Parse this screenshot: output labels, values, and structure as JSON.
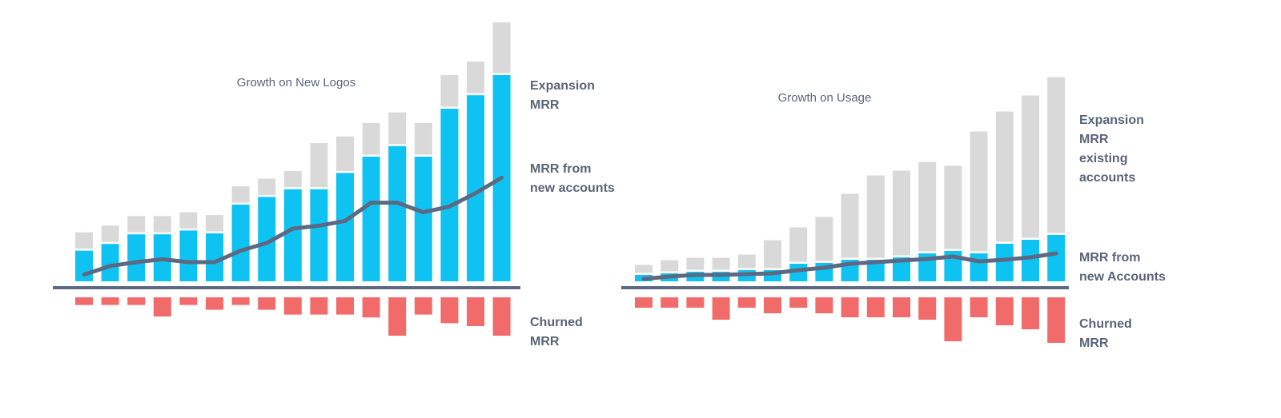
{
  "chart_data": [
    {
      "type": "bar",
      "title": "Growth on New Logos",
      "xlabel": "",
      "ylabel": "",
      "grid": false,
      "categories": [
        "1",
        "2",
        "3",
        "4",
        "5",
        "6",
        "7",
        "8",
        "9",
        "10",
        "11",
        "12",
        "13",
        "14",
        "15",
        "16",
        "17"
      ],
      "series": [
        {
          "key": "new",
          "color": "#0ec3f2",
          "values": [
            32,
            39,
            49,
            49,
            53,
            50,
            80,
            88,
            96,
            96,
            113,
            130,
            141,
            130,
            180,
            194,
            215
          ]
        },
        {
          "key": "expansion",
          "color": "#d9d9d9",
          "values": [
            17,
            17,
            17,
            17,
            17,
            17,
            17,
            17,
            17,
            46,
            36,
            33,
            33,
            33,
            33,
            33,
            53
          ]
        },
        {
          "key": "churn",
          "color": "#f26b6b",
          "values": [
            -8,
            -8,
            -8,
            -20,
            -8,
            -13,
            -8,
            -13,
            -18,
            -18,
            -18,
            -21,
            -40,
            -18,
            -27,
            -30,
            -40
          ]
        }
      ],
      "line": {
        "color": "#5d6882",
        "values": [
          7,
          16,
          20,
          23,
          20,
          20,
          32,
          40,
          55,
          58,
          63,
          82,
          82,
          72,
          78,
          92,
          108
        ]
      },
      "ylim": [
        -60,
        275
      ],
      "labels": [
        {
          "text": "Expansion\nMRR",
          "ref": "expansion"
        },
        {
          "text": "MRR from\nnew accounts",
          "ref": "new"
        },
        {
          "text": "Churned\nMRR",
          "ref": "churn"
        }
      ]
    },
    {
      "type": "bar",
      "title": "Growth on Usage",
      "xlabel": "",
      "ylabel": "",
      "grid": false,
      "categories": [
        "1",
        "2",
        "3",
        "4",
        "5",
        "6",
        "7",
        "8",
        "9",
        "10",
        "11",
        "12",
        "13",
        "14",
        "15",
        "16",
        "17"
      ],
      "series": [
        {
          "key": "new",
          "color": "#0ec3f2",
          "values": [
            8,
            10,
            12,
            12,
            14,
            14,
            22,
            23,
            27,
            27,
            30,
            35,
            38,
            35,
            47,
            52,
            58
          ]
        },
        {
          "key": "expansion",
          "color": "#d9d9d9",
          "values": [
            10,
            14,
            15,
            15,
            17,
            35,
            43,
            55,
            80,
            103,
            106,
            112,
            104,
            150,
            163,
            178,
            195
          ]
        },
        {
          "key": "churn",
          "color": "#f26b6b",
          "values": [
            -13,
            -13,
            -13,
            -28,
            -13,
            -20,
            -13,
            -20,
            -25,
            -25,
            -25,
            -28,
            -55,
            -25,
            -35,
            -40,
            -57
          ]
        }
      ],
      "line": {
        "color": "#5d6882",
        "values": [
          3,
          6,
          8,
          8,
          9,
          10,
          14,
          17,
          22,
          24,
          26,
          28,
          31,
          25,
          27,
          30,
          35
        ]
      },
      "ylim": [
        -70,
        270
      ],
      "labels": [
        {
          "text": "Expansion\nMRR\nexisting\naccounts",
          "ref": "expansion"
        },
        {
          "text": "MRR from\nnew Accounts",
          "ref": "new"
        },
        {
          "text": "Churned\nMRR",
          "ref": "churn"
        }
      ]
    }
  ]
}
